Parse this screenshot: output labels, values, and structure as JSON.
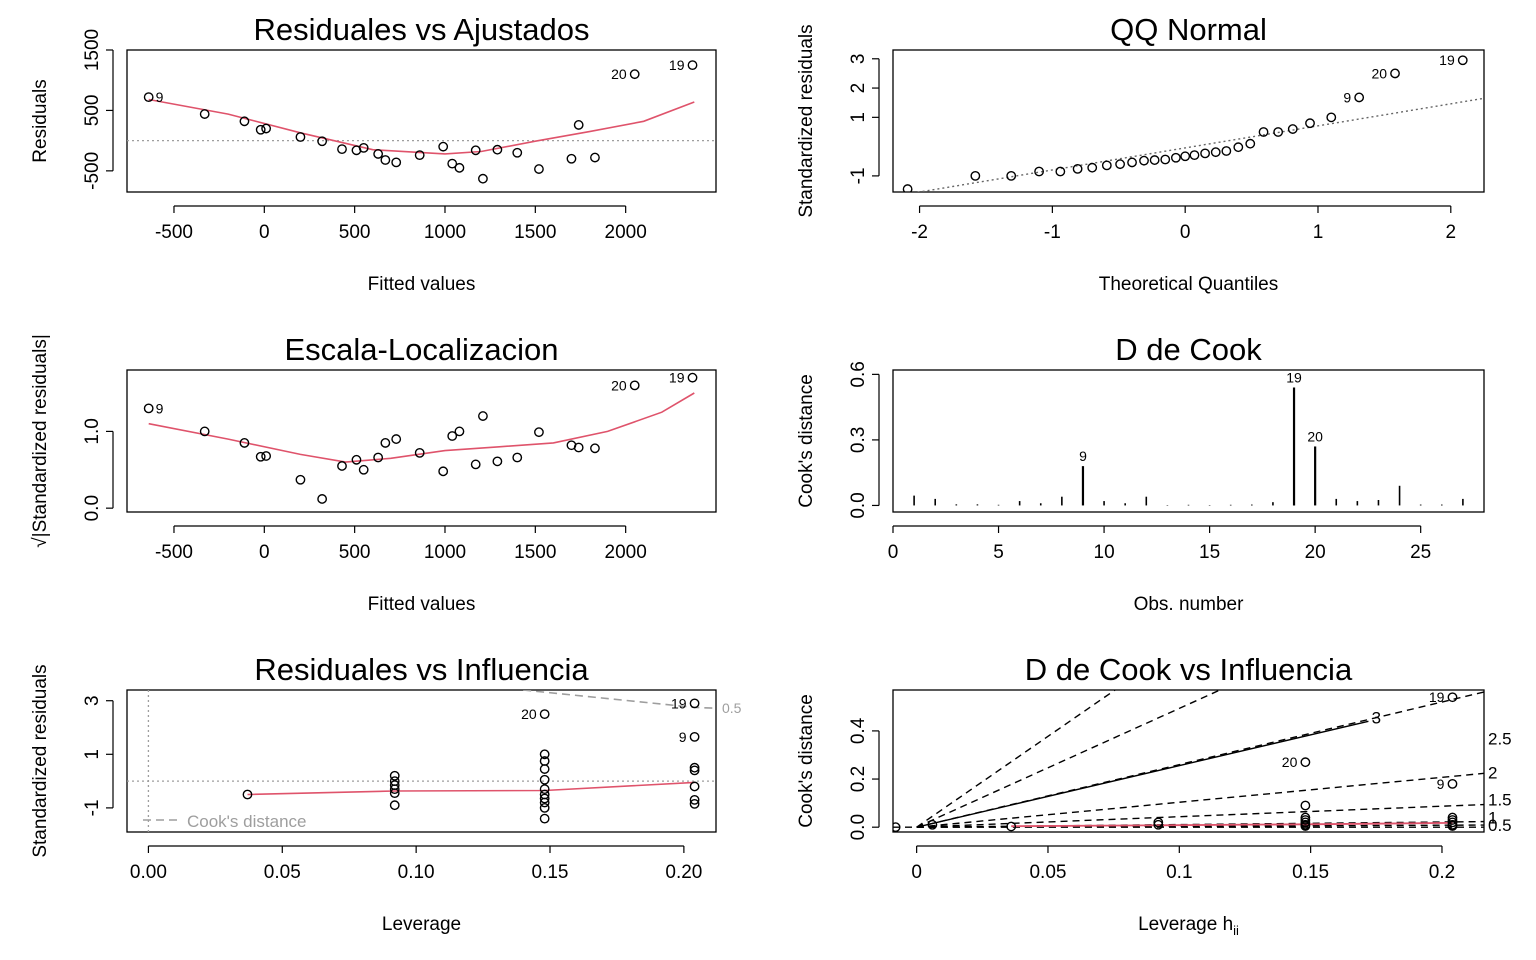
{
  "chart_data": [
    {
      "type": "scatter",
      "title": "Residuales vs Ajustados",
      "xlabel": "Fitted values",
      "ylabel": "Residuals",
      "xlim": [
        -760,
        2500
      ],
      "ylim": [
        -850,
        1500
      ],
      "xticks": [
        -500,
        0,
        500,
        1000,
        1500,
        2000
      ],
      "xtick_labels": [
        "-500",
        "0",
        "500",
        "1000",
        "1500",
        "2000"
      ],
      "yticks": [
        -500,
        500,
        1500
      ],
      "ytick_labels": [
        "-500",
        "500",
        "1500"
      ],
      "hline": 0,
      "points": [
        [
          -640,
          720
        ],
        [
          -330,
          440
        ],
        [
          -110,
          320
        ],
        [
          -20,
          180
        ],
        [
          10,
          200
        ],
        [
          200,
          60
        ],
        [
          320,
          -10
        ],
        [
          430,
          -140
        ],
        [
          510,
          -160
        ],
        [
          550,
          -120
        ],
        [
          630,
          -220
        ],
        [
          670,
          -320
        ],
        [
          730,
          -360
        ],
        [
          860,
          -240
        ],
        [
          990,
          -100
        ],
        [
          1040,
          -380
        ],
        [
          1080,
          -450
        ],
        [
          1170,
          -160
        ],
        [
          1210,
          -630
        ],
        [
          1290,
          -150
        ],
        [
          1400,
          -200
        ],
        [
          1520,
          -470
        ],
        [
          1700,
          -300
        ],
        [
          1740,
          260
        ],
        [
          1830,
          -280
        ],
        [
          2050,
          1100
        ],
        [
          2370,
          1250
        ]
      ],
      "smoother": [
        [
          -640,
          680
        ],
        [
          -200,
          440
        ],
        [
          200,
          130
        ],
        [
          600,
          -150
        ],
        [
          1000,
          -220
        ],
        [
          1200,
          -180
        ],
        [
          1500,
          -10
        ],
        [
          1800,
          150
        ],
        [
          2100,
          320
        ],
        [
          2380,
          640
        ]
      ],
      "point_labels": [
        {
          "x": -640,
          "y": 720,
          "text": "9",
          "side": "right"
        },
        {
          "x": 2050,
          "y": 1100,
          "text": "20",
          "side": "left"
        },
        {
          "x": 2370,
          "y": 1250,
          "text": "19",
          "side": "left"
        }
      ]
    },
    {
      "type": "scatter",
      "title": "QQ Normal",
      "xlabel": "Theoretical Quantiles",
      "ylabel": "Standardized residuals",
      "xlim": [
        -2.2,
        2.25
      ],
      "ylim": [
        -1.55,
        3.3
      ],
      "xticks": [
        -2,
        -1,
        0,
        1,
        2
      ],
      "xtick_labels": [
        "-2",
        "-1",
        "0",
        "1",
        "2"
      ],
      "yticks": [
        -1,
        1,
        2,
        3
      ],
      "ytick_labels": [
        "-1",
        "1",
        "2",
        "3"
      ],
      "reference_line": [
        [
          -2.2,
          -1.7
        ],
        [
          2.25,
          1.65
        ]
      ],
      "points": [
        [
          -2.09,
          -1.45
        ],
        [
          -1.58,
          -1.0
        ],
        [
          -1.31,
          -1.0
        ],
        [
          -1.1,
          -0.85
        ],
        [
          -0.94,
          -0.85
        ],
        [
          -0.81,
          -0.76
        ],
        [
          -0.7,
          -0.72
        ],
        [
          -0.59,
          -0.64
        ],
        [
          -0.49,
          -0.6
        ],
        [
          -0.4,
          -0.54
        ],
        [
          -0.31,
          -0.48
        ],
        [
          -0.23,
          -0.46
        ],
        [
          -0.15,
          -0.44
        ],
        [
          -0.07,
          -0.38
        ],
        [
          0.0,
          -0.33
        ],
        [
          0.07,
          -0.29
        ],
        [
          0.15,
          -0.23
        ],
        [
          0.23,
          -0.19
        ],
        [
          0.31,
          -0.15
        ],
        [
          0.4,
          -0.02
        ],
        [
          0.49,
          0.1
        ],
        [
          0.59,
          0.5
        ],
        [
          0.7,
          0.5
        ],
        [
          0.81,
          0.6
        ],
        [
          0.94,
          0.8
        ],
        [
          1.1,
          1.0
        ],
        [
          1.31,
          1.68
        ],
        [
          1.58,
          2.5
        ],
        [
          2.09,
          2.95
        ]
      ],
      "point_labels": [
        {
          "x": 1.31,
          "y": 1.68,
          "text": "9",
          "side": "left"
        },
        {
          "x": 1.58,
          "y": 2.5,
          "text": "20",
          "side": "left"
        },
        {
          "x": 2.09,
          "y": 2.95,
          "text": "19",
          "side": "left"
        }
      ]
    },
    {
      "type": "scatter",
      "title": "Escala-Localizacion",
      "xlabel": "Fitted values",
      "ylabel": "√|Standardized residuals|",
      "xlim": [
        -760,
        2500
      ],
      "ylim": [
        -0.05,
        1.8
      ],
      "xticks": [
        -500,
        0,
        500,
        1000,
        1500,
        2000
      ],
      "xtick_labels": [
        "-500",
        "0",
        "500",
        "1000",
        "1500",
        "2000"
      ],
      "yticks": [
        0.0,
        1.0
      ],
      "ytick_labels": [
        "0.0",
        "1.0"
      ],
      "points": [
        [
          -640,
          1.3
        ],
        [
          -330,
          1.0
        ],
        [
          -110,
          0.85
        ],
        [
          -20,
          0.67
        ],
        [
          10,
          0.68
        ],
        [
          200,
          0.37
        ],
        [
          320,
          0.12
        ],
        [
          430,
          0.55
        ],
        [
          510,
          0.63
        ],
        [
          550,
          0.5
        ],
        [
          630,
          0.66
        ],
        [
          670,
          0.85
        ],
        [
          730,
          0.9
        ],
        [
          860,
          0.72
        ],
        [
          990,
          0.48
        ],
        [
          1040,
          0.94
        ],
        [
          1080,
          1.0
        ],
        [
          1170,
          0.57
        ],
        [
          1210,
          1.2
        ],
        [
          1290,
          0.61
        ],
        [
          1400,
          0.66
        ],
        [
          1520,
          0.99
        ],
        [
          1700,
          0.82
        ],
        [
          1740,
          0.79
        ],
        [
          1830,
          0.78
        ],
        [
          2050,
          1.6
        ],
        [
          2370,
          1.7
        ]
      ],
      "smoother": [
        [
          -640,
          1.1
        ],
        [
          -200,
          0.9
        ],
        [
          200,
          0.7
        ],
        [
          450,
          0.6
        ],
        [
          700,
          0.65
        ],
        [
          1000,
          0.75
        ],
        [
          1300,
          0.8
        ],
        [
          1600,
          0.85
        ],
        [
          1900,
          1.0
        ],
        [
          2200,
          1.25
        ],
        [
          2380,
          1.5
        ]
      ],
      "point_labels": [
        {
          "x": -640,
          "y": 1.3,
          "text": "9",
          "side": "right"
        },
        {
          "x": 2050,
          "y": 1.6,
          "text": "20",
          "side": "left"
        },
        {
          "x": 2370,
          "y": 1.7,
          "text": "19",
          "side": "left"
        }
      ]
    },
    {
      "type": "bar",
      "title": "D de Cook",
      "xlabel": "Obs. number",
      "ylabel": "Cook's distance",
      "xlim": [
        0,
        28.0
      ],
      "ylim": [
        -0.03,
        0.62
      ],
      "xticks": [
        0,
        5,
        10,
        15,
        20,
        25
      ],
      "xtick_labels": [
        "0",
        "5",
        "10",
        "15",
        "20",
        "25"
      ],
      "yticks": [
        0.0,
        0.3,
        0.6
      ],
      "ytick_labels": [
        "0.0",
        "0.3",
        "0.6"
      ],
      "categories": [
        1,
        2,
        3,
        4,
        5,
        6,
        7,
        8,
        9,
        10,
        11,
        12,
        13,
        14,
        15,
        16,
        17,
        18,
        19,
        20,
        21,
        22,
        23,
        24,
        25,
        26,
        27
      ],
      "values": [
        0.045,
        0.03,
        0.005,
        0.005,
        0.003,
        0.02,
        0.01,
        0.04,
        0.18,
        0.02,
        0.01,
        0.04,
        0.002,
        0.003,
        0.002,
        0.003,
        0.004,
        0.015,
        0.54,
        0.27,
        0.03,
        0.02,
        0.025,
        0.09,
        0.004,
        0.004,
        0.03
      ],
      "bar_labels": [
        {
          "x": 9,
          "y": 0.18,
          "text": "9"
        },
        {
          "x": 19,
          "y": 0.54,
          "text": "19"
        },
        {
          "x": 20,
          "y": 0.27,
          "text": "20"
        }
      ]
    },
    {
      "type": "scatter",
      "title": "Residuales vs Influencia",
      "xlabel": "Leverage",
      "ylabel": "Standardized residuals",
      "xlim": [
        -0.008,
        0.212
      ],
      "ylim": [
        -1.9,
        3.4
      ],
      "xticks": [
        0.0,
        0.05,
        0.1,
        0.15,
        0.2
      ],
      "xtick_labels": [
        "0.00",
        "0.05",
        "0.10",
        "0.15",
        "0.20"
      ],
      "yticks": [
        -1,
        1,
        3
      ],
      "ytick_labels": [
        "-1",
        "1",
        "3"
      ],
      "hline": 0,
      "vline": 0,
      "points": [
        [
          0.037,
          -0.5
        ],
        [
          0.092,
          0.2
        ],
        [
          0.092,
          0.0
        ],
        [
          0.092,
          -0.15
        ],
        [
          0.092,
          -0.3
        ],
        [
          0.092,
          -0.45
        ],
        [
          0.092,
          -0.9
        ],
        [
          0.148,
          2.5
        ],
        [
          0.148,
          1.0
        ],
        [
          0.148,
          0.75
        ],
        [
          0.148,
          0.45
        ],
        [
          0.148,
          0.05
        ],
        [
          0.148,
          -0.3
        ],
        [
          0.148,
          -0.5
        ],
        [
          0.148,
          -0.65
        ],
        [
          0.148,
          -0.8
        ],
        [
          0.148,
          -1.0
        ],
        [
          0.148,
          -1.4
        ],
        [
          0.204,
          2.9
        ],
        [
          0.204,
          1.65
        ],
        [
          0.204,
          0.5
        ],
        [
          0.204,
          0.4
        ],
        [
          0.204,
          -0.2
        ],
        [
          0.204,
          -0.7
        ],
        [
          0.204,
          -0.85
        ]
      ],
      "smoother": [
        [
          0.037,
          -0.5
        ],
        [
          0.092,
          -0.37
        ],
        [
          0.148,
          -0.35
        ],
        [
          0.204,
          -0.05
        ]
      ],
      "cooks_contour": {
        "level_label": "0.5",
        "points": [
          [
            0.14,
            3.4
          ],
          [
            0.204,
            2.75
          ],
          [
            0.212,
            2.72
          ]
        ]
      },
      "point_labels": [
        {
          "x": 0.148,
          "y": 2.5,
          "text": "20",
          "side": "left"
        },
        {
          "x": 0.204,
          "y": 2.9,
          "text": "19",
          "side": "left"
        },
        {
          "x": 0.204,
          "y": 1.65,
          "text": "9",
          "side": "left"
        }
      ],
      "legend": {
        "label": "Cook's distance",
        "position": "bottom-left"
      }
    },
    {
      "type": "scatter",
      "title": "D de Cook vs Influencia",
      "xlabel": "Leverage  h",
      "xlabel_sub": "ii",
      "ylabel": "Cook's distance",
      "xlim": [
        -0.009,
        0.216
      ],
      "ylim": [
        -0.02,
        0.57
      ],
      "xticks": [
        0,
        0.05,
        0.1,
        0.15,
        0.2
      ],
      "xtick_labels": [
        "0",
        "0.05",
        "0.1",
        "0.15",
        "0.2"
      ],
      "yticks": [
        0.0,
        0.2,
        0.4
      ],
      "ytick_labels": [
        "0.0",
        "0.2",
        "0.4"
      ],
      "contour_levels": [
        "0.5",
        "1",
        "1.5",
        "2",
        "2.5",
        "3"
      ],
      "right_labels": [
        {
          "y": 0.013,
          "text": "0.5"
        },
        {
          "y": 0.044,
          "text": "1"
        },
        {
          "y": 0.119,
          "text": "1.5"
        },
        {
          "y": 0.232,
          "text": "2"
        },
        {
          "y": 0.372,
          "text": "2.5"
        }
      ],
      "inner_label": {
        "x": 0.175,
        "y": 0.455,
        "text": "3"
      },
      "points": [
        [
          -0.008,
          0.0
        ],
        [
          0.006,
          0.01
        ],
        [
          0.036,
          0.003
        ],
        [
          0.092,
          0.02
        ],
        [
          0.092,
          0.01
        ],
        [
          0.148,
          0.09
        ],
        [
          0.148,
          0.04
        ],
        [
          0.148,
          0.03
        ],
        [
          0.148,
          0.02
        ],
        [
          0.148,
          0.01
        ],
        [
          0.148,
          0.005
        ],
        [
          0.148,
          0.27
        ],
        [
          0.204,
          0.54
        ],
        [
          0.204,
          0.18
        ],
        [
          0.204,
          0.04
        ],
        [
          0.204,
          0.03
        ],
        [
          0.204,
          0.02
        ],
        [
          0.204,
          0.01
        ],
        [
          0.204,
          0.005
        ]
      ],
      "smoother": [
        [
          0.036,
          0.004
        ],
        [
          0.092,
          0.008
        ],
        [
          0.148,
          0.012
        ],
        [
          0.204,
          0.018
        ]
      ],
      "point_labels": [
        {
          "x": 0.204,
          "y": 0.54,
          "text": "19",
          "side": "left"
        },
        {
          "x": 0.148,
          "y": 0.27,
          "text": "20",
          "side": "left"
        },
        {
          "x": 0.204,
          "y": 0.18,
          "text": "9",
          "side": "left"
        }
      ]
    }
  ]
}
